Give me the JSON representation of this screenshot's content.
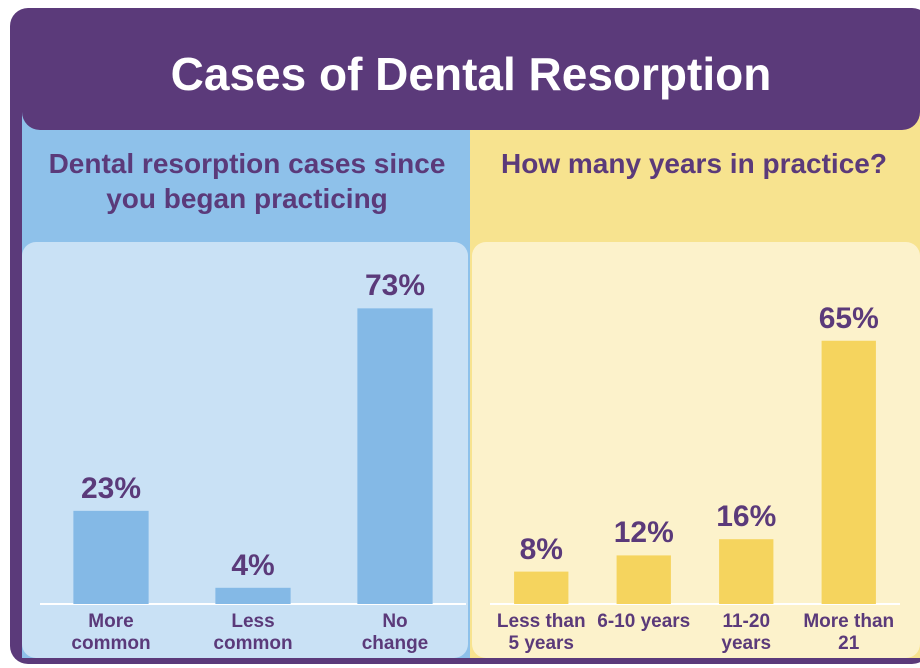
{
  "title": "Cases of Dental Resorption",
  "chart_data": [
    {
      "type": "bar",
      "title": "Dental resorption cases since you began practicing",
      "categories": [
        "More common",
        "Less common",
        "No change"
      ],
      "values": [
        23,
        4,
        73
      ],
      "value_labels": [
        "23%",
        "4%",
        "73%"
      ],
      "color": "#84b9e6"
    },
    {
      "type": "bar",
      "title": "How many years in practice?",
      "categories": [
        "Less than 5 years",
        "6-10 years",
        "11-20 years",
        "More than 21"
      ],
      "values": [
        8,
        12,
        16,
        65
      ],
      "value_labels": [
        "8%",
        "12%",
        "16%",
        "65%"
      ],
      "color": "#f5d45e"
    }
  ]
}
